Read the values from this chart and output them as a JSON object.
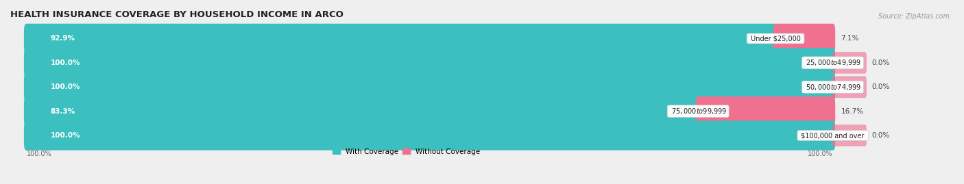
{
  "title": "HEALTH INSURANCE COVERAGE BY HOUSEHOLD INCOME IN ARCO",
  "source": "Source: ZipAtlas.com",
  "categories": [
    "Under $25,000",
    "$25,000 to $49,999",
    "$50,000 to $74,999",
    "$75,000 to $99,999",
    "$100,000 and over"
  ],
  "with_coverage": [
    92.9,
    100.0,
    100.0,
    83.3,
    100.0
  ],
  "without_coverage": [
    7.1,
    0.0,
    0.0,
    16.7,
    0.0
  ],
  "with_color": "#3bbfbf",
  "without_color": "#f07090",
  "bg_color": "#efefef",
  "bar_bg_color": "#ffffff",
  "bar_height": 0.62,
  "legend_labels": [
    "With Coverage",
    "Without Coverage"
  ],
  "title_fontsize": 9.5,
  "label_fontsize": 7.5,
  "source_fontsize": 7,
  "with_pct_labels": [
    "92.9%",
    "100.0%",
    "100.0%",
    "83.3%",
    "100.0%"
  ],
  "without_pct_labels": [
    "7.1%",
    "0.0%",
    "0.0%",
    "16.7%",
    "0.0%"
  ],
  "bottom_labels": [
    "100.0%",
    "100.0%"
  ]
}
